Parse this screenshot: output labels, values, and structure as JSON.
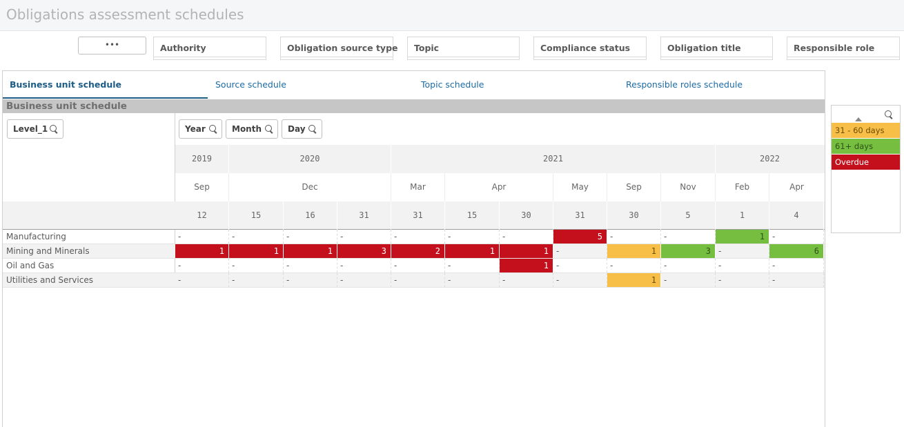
{
  "app": {
    "title": "Obligations assessment schedules"
  },
  "filters": {
    "more_label": "•••",
    "items": [
      "Authority",
      "Obligation source type",
      "Topic",
      "Compliance status",
      "Obligation title",
      "Responsible role"
    ]
  },
  "tabs": [
    "Business unit schedule",
    "Source schedule",
    "Topic schedule",
    "Responsible roles schedule"
  ],
  "active_tab": 0,
  "sheet_title": "Business unit schedule",
  "dimension_buttons": {
    "level": "Level_1",
    "year": "Year",
    "month": "Month",
    "day": "Day"
  },
  "table": {
    "years": [
      "2019",
      "2020",
      "2021",
      "2022"
    ],
    "months": [
      "Sep",
      "Dec",
      "Mar",
      "Apr",
      "May",
      "Sep",
      "Nov",
      "Feb",
      "Apr"
    ],
    "days": [
      "12",
      "15",
      "16",
      "31",
      "31",
      "15",
      "30",
      "31",
      "30",
      "5",
      "1",
      "4"
    ],
    "rows": [
      {
        "label": "Manufacturing",
        "cells": [
          "-",
          "-",
          "-",
          "-",
          "-",
          "-",
          "-",
          "5",
          "-",
          "-",
          "1",
          "-"
        ],
        "status": [
          "",
          "",
          "",
          "",
          "",
          "",
          "",
          "overdue",
          "",
          "",
          "61+",
          ""
        ]
      },
      {
        "label": "Mining and Minerals",
        "cells": [
          "1",
          "1",
          "1",
          "3",
          "2",
          "1",
          "1",
          "-",
          "1",
          "3",
          "-",
          "6"
        ],
        "status": [
          "overdue",
          "overdue",
          "overdue",
          "overdue",
          "overdue",
          "overdue",
          "overdue",
          "",
          "31-60",
          "61+",
          "",
          "61+"
        ]
      },
      {
        "label": "Oil and Gas",
        "cells": [
          "-",
          "-",
          "-",
          "-",
          "-",
          "-",
          "1",
          "-",
          "-",
          "-",
          "-",
          "-"
        ],
        "status": [
          "",
          "",
          "",
          "",
          "",
          "",
          "overdue",
          "",
          "",
          "",
          "",
          ""
        ]
      },
      {
        "label": "Utilities and Services",
        "cells": [
          "-",
          "-",
          "-",
          "-",
          "-",
          "-",
          "-",
          "-",
          "1",
          "-",
          "-",
          "-"
        ],
        "status": [
          "",
          "",
          "",
          "",
          "",
          "",
          "",
          "",
          "31-60",
          "",
          "",
          ""
        ]
      }
    ]
  },
  "legend": {
    "items": [
      {
        "label": "31 - 60 days",
        "color": "#f7bf47"
      },
      {
        "label": "61+ days",
        "color": "#75be3f"
      },
      {
        "label": "Overdue",
        "color": "#c4101d"
      }
    ]
  },
  "colors": {
    "overdue": "#c4101d",
    "days_61_plus": "#75be3f",
    "days_31_60": "#f7bf47",
    "tab_active": "#1d5c87"
  }
}
